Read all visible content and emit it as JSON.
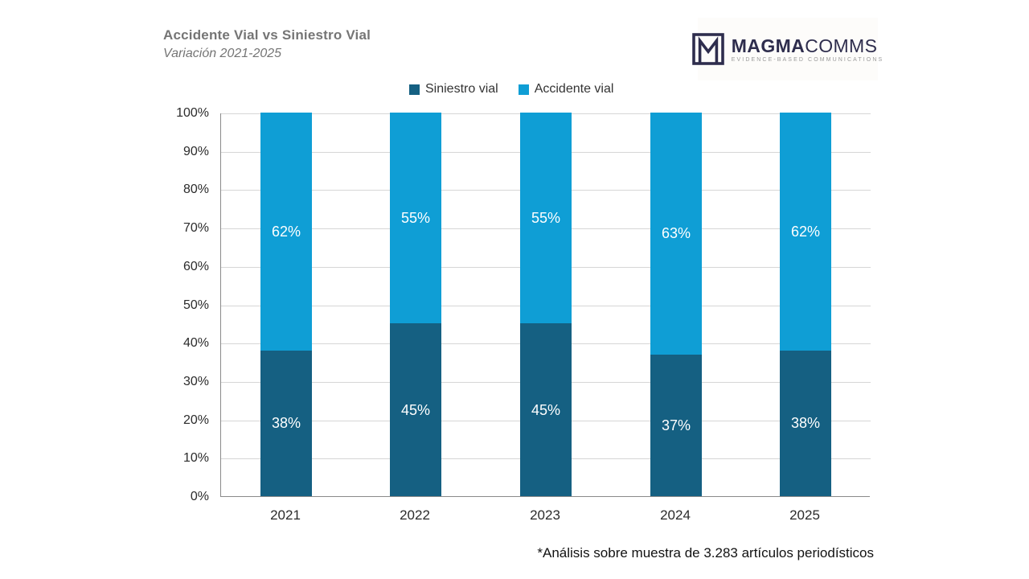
{
  "header": {
    "title": "Accidente Vial vs Siniestro Vial",
    "subtitle": "Variación 2021-2025"
  },
  "logo": {
    "brand_bold": "MAGMA",
    "brand_light": "COMMS",
    "tagline": "EVIDENCE-BASED COMMUNICATIONS",
    "brand_color": "#2e2d4d"
  },
  "footnote": "*Análisis sobre muestra de 3.283 artículos periodísticos",
  "chart_data": {
    "type": "bar",
    "stacked": true,
    "percent_stacked": true,
    "title": "Accidente Vial vs Siniestro Vial",
    "subtitle": "Variación 2021-2025",
    "categories": [
      "2021",
      "2022",
      "2023",
      "2024",
      "2025"
    ],
    "series": [
      {
        "name": "Siniestro vial",
        "color": "#156082",
        "values": [
          38,
          45,
          45,
          37,
          38
        ]
      },
      {
        "name": "Accidente vial",
        "color": "#0F9ED5",
        "values": [
          62,
          55,
          55,
          63,
          62
        ]
      }
    ],
    "data_label_suffix": "%",
    "data_label_color": "#ffffff",
    "ylim": [
      0,
      100
    ],
    "y_tick_step": 10,
    "y_tick_labels": [
      "0%",
      "10%",
      "20%",
      "30%",
      "40%",
      "50%",
      "60%",
      "70%",
      "80%",
      "90%",
      "100%"
    ],
    "grid": true,
    "grid_color": "#d6d6d6",
    "axis_color": "#8a8a8a",
    "legend_position": "top"
  }
}
